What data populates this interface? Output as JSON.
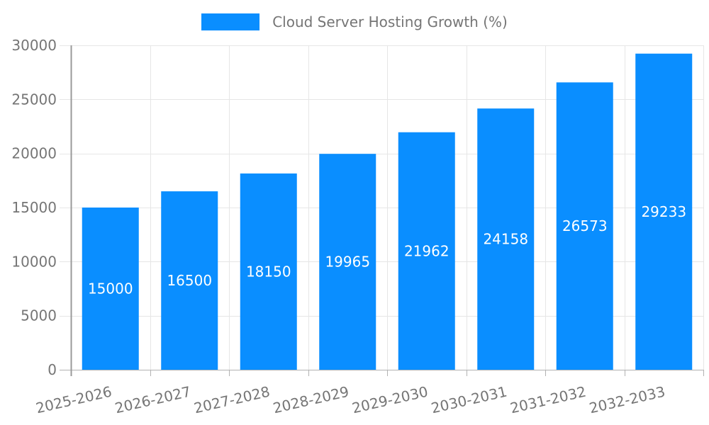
{
  "legend": {
    "label": "Cloud Server Hosting Growth (%)",
    "position": "top"
  },
  "chart_data": {
    "type": "bar",
    "title": "Cloud Server Hosting Growth (%)",
    "categories": [
      "2025-2026",
      "2026-2027",
      "2027-2028",
      "2028-2029",
      "2029-2030",
      "2030-2031",
      "2031-2032",
      "2032-2033"
    ],
    "series": [
      {
        "name": "Cloud Server Hosting Growth (%)",
        "values": [
          15000,
          16500,
          18150,
          19965,
          21962,
          24158,
          26573,
          29233
        ],
        "value_labels": [
          "15000",
          "16500",
          "18150",
          "19965",
          "21962",
          "24158",
          "26573",
          "29233"
        ],
        "color": "#0a8eff"
      }
    ],
    "xlabel": "",
    "ylabel": "",
    "ylim": [
      0,
      30000
    ],
    "yticks": [
      0,
      5000,
      10000,
      15000,
      20000,
      25000,
      30000
    ],
    "ytick_labels": [
      "0",
      "5000",
      "10000",
      "15000",
      "20000",
      "25000",
      "30000"
    ],
    "grid": true,
    "grid_vertical": true,
    "x_label_rotation_deg": -13,
    "legend_position": "top",
    "value_label_position": "center",
    "colors": {
      "bar": "#0a8eff",
      "value_label": "#ffffff",
      "axis_text": "#757575",
      "legend_text": "#757575",
      "gridline": "#e6e6e6",
      "axis_line": "#9a9a9a",
      "baseline": "#b2b2b2",
      "tick": "#b2b2b2",
      "background": "#ffffff"
    }
  }
}
